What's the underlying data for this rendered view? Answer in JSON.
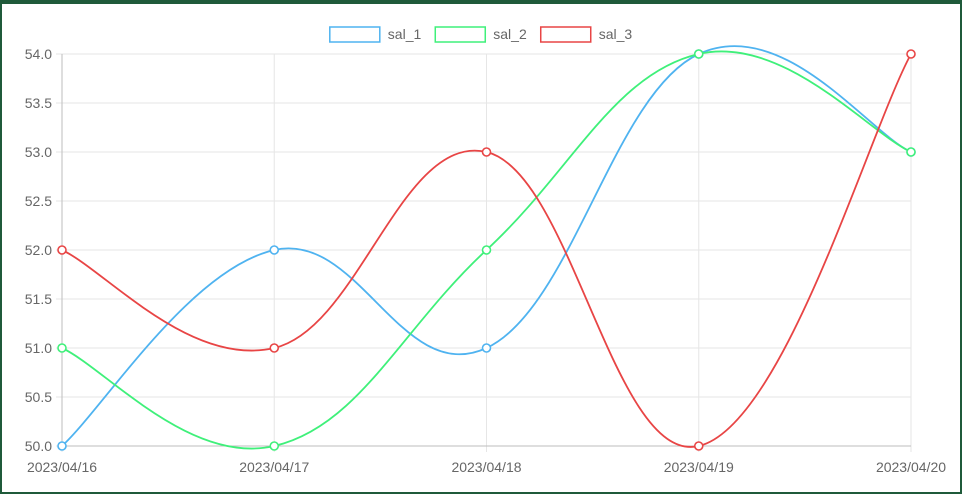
{
  "chart_data": {
    "type": "line",
    "title": "",
    "xlabel": "",
    "ylabel": "",
    "categories": [
      "2023/04/16",
      "2023/04/17",
      "2023/04/18",
      "2023/04/19",
      "2023/04/20"
    ],
    "ylim": [
      50.0,
      54.0
    ],
    "y_ticks": [
      "50.0",
      "50.5",
      "51.0",
      "51.5",
      "52.0",
      "52.5",
      "53.0",
      "53.5",
      "54.0"
    ],
    "grid": true,
    "legend_position": "top",
    "series": [
      {
        "name": "sal_1",
        "color": "#4fb3f0",
        "values": [
          50,
          52,
          51,
          54,
          53
        ]
      },
      {
        "name": "sal_2",
        "color": "#3ff07a",
        "values": [
          51,
          50,
          52,
          54,
          53
        ]
      },
      {
        "name": "sal_3",
        "color": "#e84545",
        "values": [
          52,
          51,
          53,
          50,
          54
        ]
      }
    ]
  }
}
